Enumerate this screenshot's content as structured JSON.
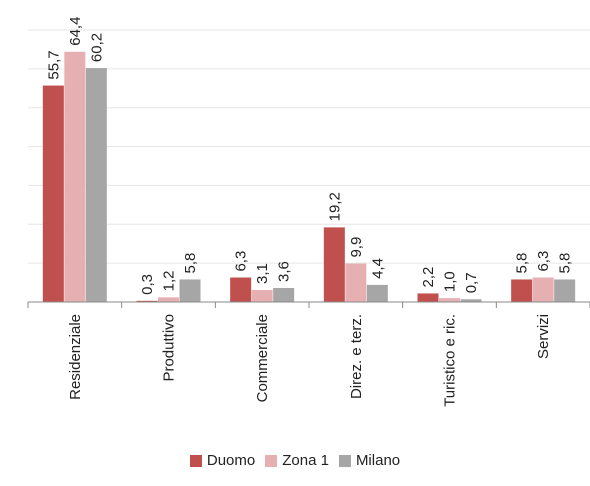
{
  "chart_data": {
    "type": "bar",
    "title": "",
    "xlabel": "",
    "ylabel": "",
    "ylim": [
      0,
      70
    ],
    "grid": true,
    "legend_position": "bottom",
    "categories": [
      "Residenziale",
      "Produttivo",
      "Commerciale",
      "Direz. e terz.",
      "Turistico e ric.",
      "Servizi"
    ],
    "series": [
      {
        "name": "Duomo",
        "color": "#c0504d",
        "values": [
          55.7,
          0.3,
          6.3,
          19.2,
          2.2,
          5.8
        ]
      },
      {
        "name": "Zona 1",
        "color": "#e6b0b3",
        "values": [
          64.4,
          1.2,
          3.1,
          9.9,
          1.0,
          6.3
        ]
      },
      {
        "name": "Milano",
        "color": "#a6a6a6",
        "values": [
          60.2,
          5.8,
          3.6,
          4.4,
          0.7,
          5.8
        ]
      }
    ],
    "value_labels": [
      [
        "55,7",
        "0,3",
        "6,3",
        "19,2",
        "2,2",
        "5,8"
      ],
      [
        "64,4",
        "1,2",
        "3,1",
        "9,9",
        "1,0",
        "6,3"
      ],
      [
        "60,2",
        "5,8",
        "3,6",
        "4,4",
        "0,7",
        "5,8"
      ]
    ]
  }
}
